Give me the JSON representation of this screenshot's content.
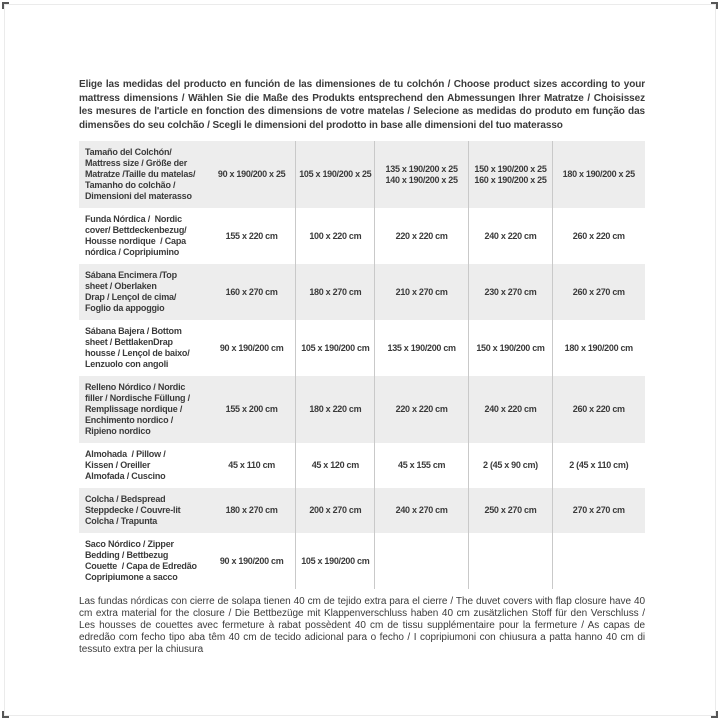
{
  "page": {
    "intro": "Elige las medidas del producto en función de las dimensiones de tu colchón / Choose product sizes according to your mattress dimensions / Wählen Sie die Maße des Produkts entsprechend den Abmessungen Ihrer Matratze / Choisissez les mesures de l'article en fonction des dimensions de votre matelas / Selecione as medidas do produto em função das dimensões do seu colchão / Scegli le dimensioni del prodotto in base alle dimensioni del tuo materasso",
    "footnote": "Las fundas nórdicas con cierre de solapa tienen 40 cm de tejido extra para el cierre  / The duvet covers with flap closure have 40 cm extra material for the closure / Die Bettbezüge mit Klappenverschluss haben 40 cm zusätzlichen Stoff für den Verschluss / Les housses de couettes avec fermeture à rabat possèdent 40 cm de tissu supplémentaire pour la fermeture / As capas de edredão com fecho tipo aba têm 40 cm de tecido adicional para o fecho / I copripiumoni con chiusura a patta hanno 40 cm di tessuto extra per la chiusura"
  },
  "colors": {
    "row_shade": "#ededed",
    "divider": "#c9c9c9",
    "text": "#3b3b3b"
  },
  "table": {
    "rows": [
      {
        "label": "Tamaño del Colchón/\nMattress size / Größe der\nMatratze /Taille du matelas/\nTamanho do colchão /\nDimensioni del materasso",
        "values": [
          "90 x 190/200 x 25",
          "105 x 190/200 x 25",
          "135 x 190/200 x 25\n140 x 190/200 x 25",
          "150 x 190/200 x 25\n160 x 190/200 x 25",
          "180 x 190/200 x 25"
        ]
      },
      {
        "label": "Funda Nórdica /  Nordic\ncover/ Bettdeckenbezug/\nHousse nordique  / Capa\nnórdica / Copripiumino",
        "values": [
          "155 x 220 cm",
          "100 x 220 cm",
          "220 x 220 cm",
          "240 x 220 cm",
          "260 x 220 cm"
        ]
      },
      {
        "label": "Sábana Encimera /Top\nsheet / Oberlaken\nDrap / Lençol de cima/\nFoglio da appoggio",
        "values": [
          "160 x 270 cm",
          "180 x 270 cm",
          "210 x 270 cm",
          "230 x 270 cm",
          "260 x 270 cm"
        ]
      },
      {
        "label": "Sábana Bajera / Bottom\nsheet / BettlakenDrap\nhousse / Lençol de baixo/\nLenzuolo con angoli",
        "values": [
          "90 x 190/200 cm",
          "105 x 190/200 cm",
          "135 x 190/200 cm",
          "150 x 190/200 cm",
          "180 x 190/200 cm"
        ]
      },
      {
        "label": "Relleno Nórdico / Nordic\nfiller / Nordische Füllung /\nRemplissage nordique /\nEnchimento nordico /\nRipieno nordico",
        "values": [
          "155 x 200 cm",
          "180 x 220 cm",
          "220 x 220 cm",
          "240 x 220 cm",
          "260 x 220 cm"
        ]
      },
      {
        "label": "Almohada  / Pillow /\nKissen / Oreiller\nAlmofada / Cuscino",
        "values": [
          "45 x 110 cm",
          "45 x 120 cm",
          "45 x 155 cm",
          "2 (45 x 90 cm)",
          "2 (45 x 110 cm)"
        ]
      },
      {
        "label": "Colcha / Bedspread\nSteppdecke / Couvre-lit\nColcha / Trapunta",
        "values": [
          "180 x 270 cm",
          "200 x 270 cm",
          "240 x 270 cm",
          "250 x 270 cm",
          "270 x 270 cm"
        ]
      },
      {
        "label": "Saco Nórdico / Zipper\nBedding / Bettbezug\nCouette  / Capa de Edredão\nCopripiumone a sacco",
        "values": [
          "90 x 190/200 cm",
          "105 x 190/200 cm",
          "",
          "",
          ""
        ]
      }
    ]
  }
}
